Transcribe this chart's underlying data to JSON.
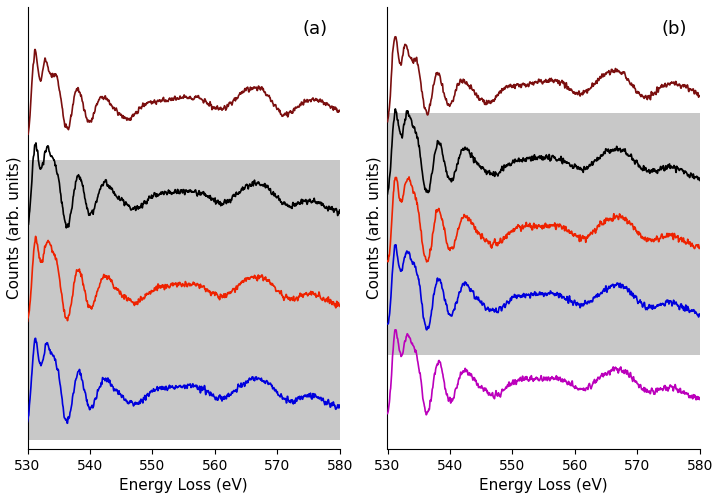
{
  "xlim": [
    530,
    580
  ],
  "xlabel": "Energy Loss (eV)",
  "ylabel": "Counts (arb. units)",
  "panel_a_label": "(a)",
  "panel_b_label": "(b)",
  "dark_red_color": "#7B0F0F",
  "black_color": "#000000",
  "red_color": "#EE2200",
  "blue_color": "#0000DD",
  "magenta_color": "#BB00BB",
  "gray_shade": "#C8C8C8",
  "background_color": "#FFFFFF",
  "linewidth": 1.2,
  "seed": 42
}
